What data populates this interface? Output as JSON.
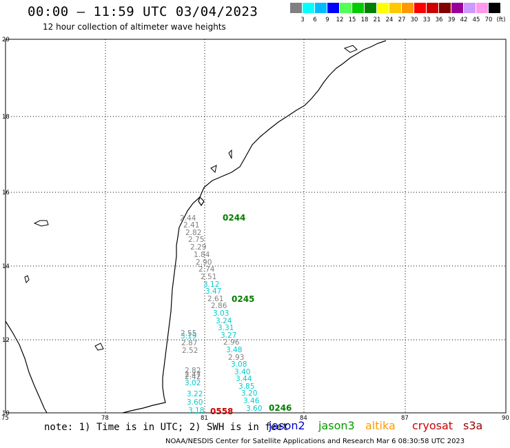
{
  "header": {
    "title": "00:00 – 11:59 UTC 03/04/2023",
    "subtitle": "12 hour collection of altimeter wave heights"
  },
  "scale": {
    "colors": [
      "#808080",
      "#00ffff",
      "#00bbff",
      "#0000ff",
      "#55ff55",
      "#00cc00",
      "#008000",
      "#ffff00",
      "#ffc800",
      "#ff9900",
      "#ff0000",
      "#cc0000",
      "#800000",
      "#990099",
      "#cc99ff",
      "#ff99ee",
      "#000000"
    ],
    "labels": [
      "3",
      "6",
      "9",
      "12",
      "15",
      "18",
      "21",
      "24",
      "27",
      "30",
      "33",
      "36",
      "39",
      "42",
      "45",
      "70",
      "(ft)"
    ]
  },
  "axes": {
    "y_labels": [
      "20",
      "18",
      "16",
      "14",
      "12",
      "10"
    ],
    "x_labels": [
      "75",
      "78",
      "81",
      "84",
      "87",
      "90"
    ]
  },
  "observations": [
    {
      "v": "2.44",
      "c": "#808080"
    },
    {
      "v": "2.41",
      "c": "#808080"
    },
    {
      "v": "2.82",
      "c": "#808080"
    },
    {
      "v": "2.75",
      "c": "#808080"
    },
    {
      "v": "2.29",
      "c": "#808080"
    },
    {
      "v": "1.84",
      "c": "#808080"
    },
    {
      "v": "2.90",
      "c": "#808080"
    },
    {
      "v": "2.74",
      "c": "#808080"
    },
    {
      "v": "2.51",
      "c": "#808080"
    },
    {
      "v": "3.12",
      "c": "#00cccc"
    },
    {
      "v": "3.47",
      "c": "#00cccc"
    },
    {
      "v": "2.61",
      "c": "#808080"
    },
    {
      "v": "2.86",
      "c": "#808080"
    },
    {
      "v": "3.03",
      "c": "#00cccc"
    },
    {
      "v": "3.24",
      "c": "#00cccc"
    },
    {
      "v": "3.31",
      "c": "#00cccc"
    },
    {
      "v": "3.27",
      "c": "#00cccc"
    },
    {
      "v": "2.96",
      "c": "#808080"
    },
    {
      "v": "3.48",
      "c": "#00cccc"
    },
    {
      "v": "2.93",
      "c": "#808080"
    },
    {
      "v": "3.08",
      "c": "#00cccc"
    },
    {
      "v": "3.40",
      "c": "#00cccc"
    },
    {
      "v": "3.44",
      "c": "#00cccc"
    },
    {
      "v": "3.85",
      "c": "#00cccc"
    },
    {
      "v": "3.20",
      "c": "#00cccc"
    },
    {
      "v": "3.46",
      "c": "#00cccc"
    },
    {
      "v": "3.60",
      "c": "#00cccc"
    },
    {
      "v": "2.55",
      "c": "#808080"
    },
    {
      "v": "3.19",
      "c": "#00cccc"
    },
    {
      "v": "2.87",
      "c": "#808080"
    },
    {
      "v": "2.52",
      "c": "#808080"
    },
    {
      "v": "2.82",
      "c": "#808080"
    },
    {
      "v": "2.47",
      "c": "#808080"
    },
    {
      "v": "2.42",
      "c": "#808080"
    },
    {
      "v": "3.02",
      "c": "#00cccc"
    },
    {
      "v": "3.22",
      "c": "#00cccc"
    },
    {
      "v": "3.60",
      "c": "#00cccc"
    },
    {
      "v": "3.18",
      "c": "#00cccc"
    }
  ],
  "pass_times": [
    {
      "t": "0244",
      "c": "#008000"
    },
    {
      "t": "0245",
      "c": "#008000"
    },
    {
      "t": "0246",
      "c": "#008000"
    },
    {
      "t": "0558",
      "c": "#cc0000"
    }
  ],
  "footer": {
    "note": "note: 1) Time is in UTC; 2) SWH is in feet",
    "satellites": [
      {
        "name": "jason2",
        "color": "#0000cc"
      },
      {
        "name": "jason3",
        "color": "#009900"
      },
      {
        "name": "altika",
        "color": "#ff9900"
      },
      {
        "name": "cryosat",
        "color": "#cc0000"
      },
      {
        "name": "s3a",
        "color": "#990000"
      }
    ],
    "credit": "NOAA/NESDIS Center for Satellite Applications and Research    Mar  6 08:30:58 UTC 2023"
  }
}
